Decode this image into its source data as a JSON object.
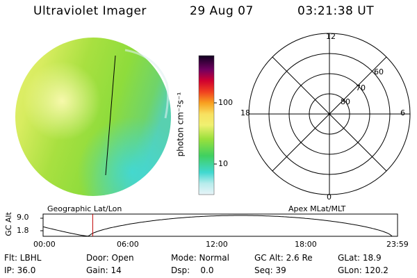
{
  "header": {
    "instrument": "Ultraviolet Imager",
    "date": "29 Aug 07",
    "time": "03:21:38 UT"
  },
  "colorbar": {
    "label": "photon cm⁻²s⁻¹",
    "ticks": [
      "100",
      "10"
    ]
  },
  "polar_plot": {
    "mlt_labels": [
      "12",
      "18",
      "6",
      "0"
    ],
    "mlat_labels": [
      "60",
      "70",
      "80"
    ]
  },
  "orbit_plot": {
    "left_caption": "Geographic Lat/Lon",
    "right_caption": "Apex MLat/MLT",
    "yaxis_title": "GC Alt",
    "yticks": [
      "9.0",
      "1.8"
    ],
    "xticks": [
      "00:00",
      "06:00",
      "12:00",
      "18:00",
      "23:59"
    ],
    "current_marker_hours": 3.36
  },
  "info": {
    "filter": "Flt: LBHL",
    "door": "Door: Open",
    "mode": "Mode: Normal",
    "gc_alt": "GC Alt: 2.6 Re",
    "glat": "GLat:  18.9",
    "ip": "IP: 36.0",
    "gain": "Gain: 14",
    "dsp": "Dsp:    0.0",
    "seq": "Seq: 39",
    "glon": "GLon: 120.2"
  }
}
